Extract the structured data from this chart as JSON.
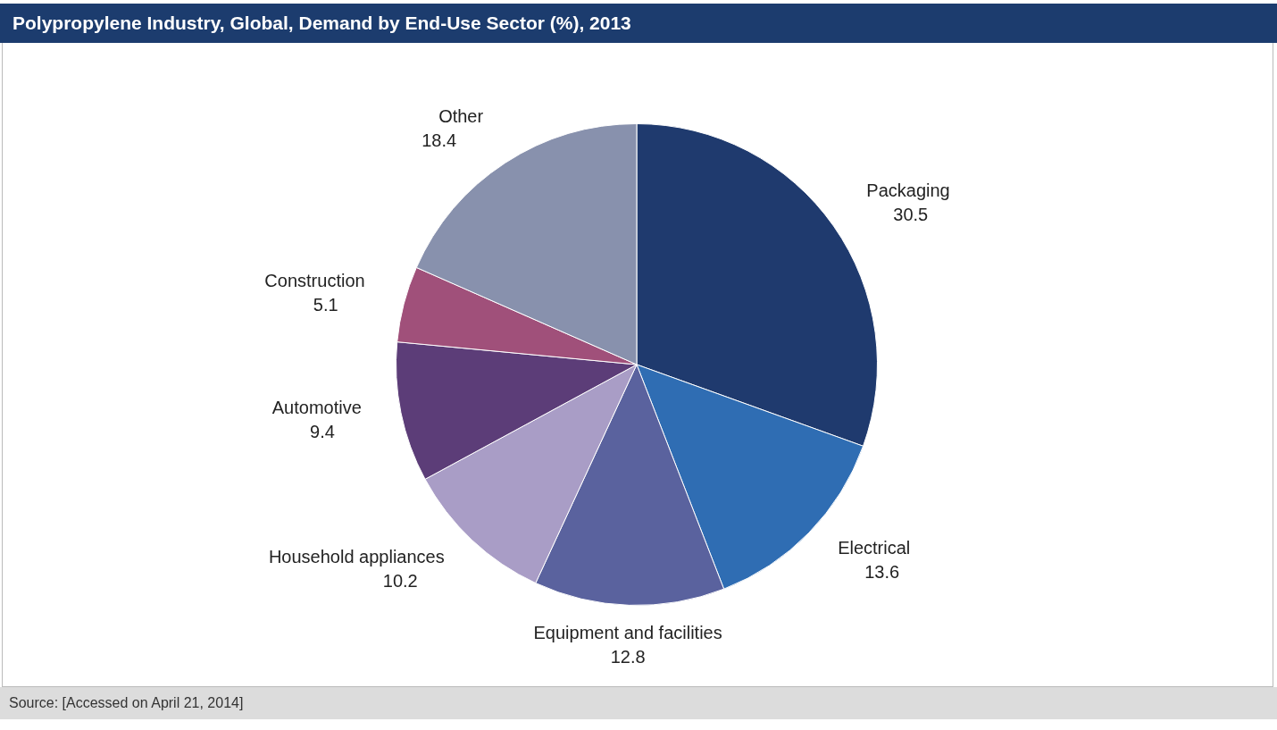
{
  "chart_data": {
    "type": "pie",
    "title": "Polypropylene Industry, Global, Demand by End-Use Sector (%), 2013",
    "categories": [
      "Packaging",
      "Electrical",
      "Equipment and facilities",
      "Household appliances",
      "Automotive",
      "Construction",
      "Other"
    ],
    "values": [
      30.5,
      13.6,
      12.8,
      10.2,
      9.4,
      5.1,
      18.4
    ],
    "colors": [
      "#1f3a6e",
      "#2f6db3",
      "#5a629e",
      "#a99dc6",
      "#5c3d78",
      "#a0507a",
      "#8891ad"
    ],
    "data_labels": true,
    "legend": false,
    "annotations": [
      "Source: [Accessed on April 21, 2014]"
    ]
  }
}
